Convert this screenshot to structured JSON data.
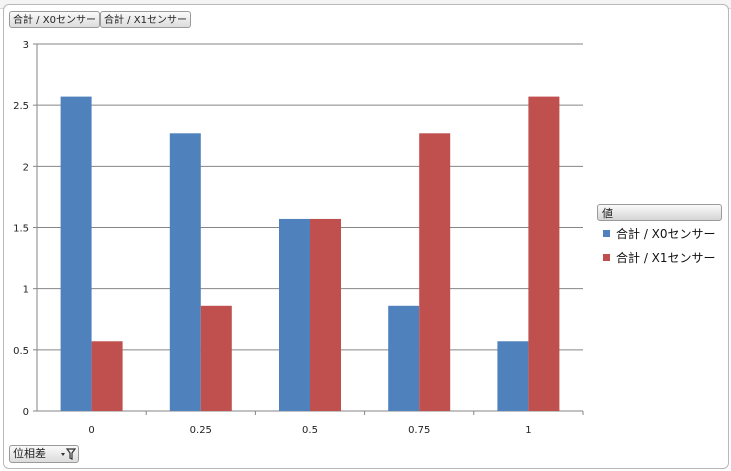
{
  "field_buttons": {
    "series0": "合計 / X0センサー",
    "series1": "合計 / X1センサー"
  },
  "legend": {
    "title": "値",
    "items": [
      {
        "label": "合計 / X0センサー",
        "color": "#4f81bd"
      },
      {
        "label": "合計 / X1センサー",
        "color": "#c0504d"
      }
    ]
  },
  "axis_field": {
    "label": "位相差",
    "icon": "filter-dropdown-icon"
  },
  "chart_data": {
    "type": "bar",
    "categories": [
      "0",
      "0.25",
      "0.5",
      "0.75",
      "1"
    ],
    "series": [
      {
        "name": "合計 / X0センサー",
        "color": "#4f81bd",
        "values": [
          2.57,
          2.27,
          1.57,
          0.86,
          0.57
        ]
      },
      {
        "name": "合計 / X1センサー",
        "color": "#c0504d",
        "values": [
          0.57,
          0.86,
          1.57,
          2.27,
          2.57
        ]
      }
    ],
    "yticks": [
      "0",
      "0.5",
      "1",
      "1.5",
      "2",
      "2.5",
      "3"
    ],
    "ylim": [
      0,
      3
    ],
    "grid": true,
    "legend_position": "right"
  }
}
